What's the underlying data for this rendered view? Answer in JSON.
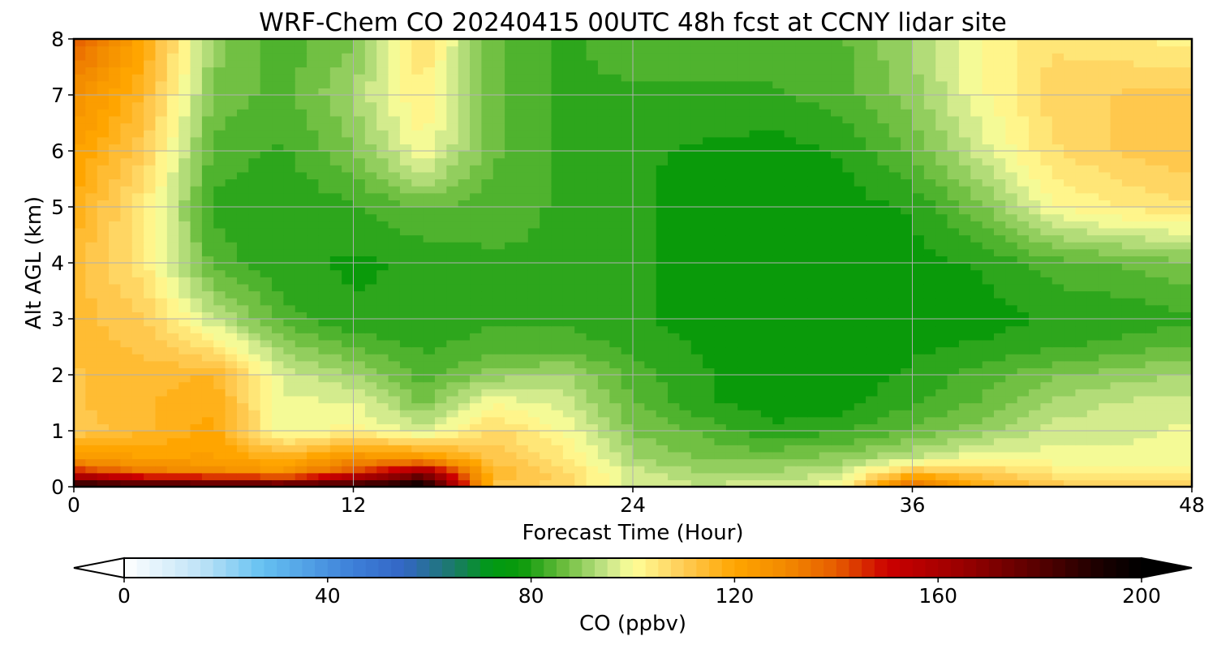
{
  "chart_data": {
    "type": "heatmap",
    "title": "WRF-Chem CO  20240415 00UTC 48h fcst at CCNY lidar site",
    "xlabel": "Forecast Time (Hour)",
    "ylabel": "Alt AGL (km)",
    "xlim": [
      0,
      48
    ],
    "ylim": [
      0,
      8
    ],
    "x_ticks": [
      "0",
      "12",
      "24",
      "36",
      "48"
    ],
    "y_ticks": [
      "0",
      "1",
      "2",
      "3",
      "4",
      "5",
      "6",
      "7",
      "8"
    ],
    "grid": true,
    "x": [
      0,
      3,
      6,
      9,
      12,
      15,
      18,
      21,
      24,
      27,
      30,
      33,
      36,
      39,
      42,
      45,
      48
    ],
    "y": [
      0,
      0.25,
      0.5,
      1,
      1.5,
      2,
      2.5,
      3,
      4,
      5,
      6,
      7,
      8
    ],
    "values": [
      [
        195,
        190,
        190,
        188,
        190,
        200,
        112,
        108,
        96,
        95,
        96,
        100,
        140,
        118,
        112,
        108,
        108
      ],
      [
        150,
        135,
        130,
        125,
        145,
        170,
        115,
        108,
        96,
        92,
        92,
        95,
        115,
        110,
        105,
        102,
        102
      ],
      [
        125,
        122,
        122,
        118,
        128,
        126,
        112,
        105,
        92,
        88,
        88,
        90,
        95,
        100,
        99,
        98,
        98
      ],
      [
        110,
        115,
        120,
        98,
        102,
        96,
        108,
        100,
        88,
        85,
        80,
        82,
        86,
        90,
        96,
        97,
        98
      ],
      [
        112,
        115,
        118,
        98,
        98,
        88,
        100,
        96,
        86,
        80,
        78,
        78,
        82,
        86,
        92,
        95,
        96
      ],
      [
        112,
        114,
        116,
        96,
        92,
        84,
        90,
        92,
        84,
        80,
        77,
        78,
        80,
        84,
        88,
        90,
        92
      ],
      [
        114,
        112,
        105,
        90,
        85,
        82,
        84,
        84,
        82,
        79,
        77,
        77,
        79,
        80,
        82,
        84,
        86
      ],
      [
        114,
        110,
        95,
        84,
        80,
        80,
        82,
        82,
        80,
        78,
        77,
        77,
        78,
        78,
        80,
        80,
        82
      ],
      [
        114,
        104,
        84,
        80,
        79,
        80,
        82,
        82,
        80,
        78,
        77,
        78,
        78,
        80,
        84,
        86,
        88
      ],
      [
        118,
        104,
        82,
        80,
        82,
        86,
        84,
        82,
        80,
        78,
        77,
        78,
        80,
        88,
        100,
        104,
        106
      ],
      [
        122,
        110,
        84,
        82,
        88,
        100,
        86,
        82,
        80,
        79,
        78,
        80,
        86,
        96,
        106,
        110,
        112
      ],
      [
        128,
        115,
        88,
        84,
        92,
        104,
        86,
        82,
        82,
        82,
        82,
        84,
        90,
        100,
        108,
        110,
        110
      ],
      [
        140,
        120,
        90,
        84,
        88,
        106,
        86,
        82,
        84,
        84,
        84,
        85,
        92,
        100,
        106,
        104,
        102
      ]
    ],
    "colorbar": {
      "label": "CO  (ppbv)",
      "min": 0,
      "max": 200,
      "ticks": [
        "0",
        "40",
        "80",
        "120",
        "160",
        "200"
      ],
      "extend": "both"
    },
    "colormap": [
      {
        "v": 0,
        "c": "#ffffff"
      },
      {
        "v": 15,
        "c": "#bfe3f7"
      },
      {
        "v": 27,
        "c": "#66c2f2"
      },
      {
        "v": 45,
        "c": "#3d7fd8"
      },
      {
        "v": 55,
        "c": "#3366c4"
      },
      {
        "v": 65,
        "c": "#1a7a66"
      },
      {
        "v": 72,
        "c": "#009a14"
      },
      {
        "v": 78,
        "c": "#0a9a0a"
      },
      {
        "v": 86,
        "c": "#66bb3a"
      },
      {
        "v": 95,
        "c": "#c8e68a"
      },
      {
        "v": 100,
        "c": "#ffff99"
      },
      {
        "v": 110,
        "c": "#ffcc55"
      },
      {
        "v": 120,
        "c": "#ffa500"
      },
      {
        "v": 130,
        "c": "#f28a00"
      },
      {
        "v": 140,
        "c": "#e65c00"
      },
      {
        "v": 150,
        "c": "#cc0000"
      },
      {
        "v": 165,
        "c": "#990000"
      },
      {
        "v": 180,
        "c": "#550000"
      },
      {
        "v": 192,
        "c": "#1a0000"
      },
      {
        "v": 200,
        "c": "#000000"
      }
    ]
  }
}
